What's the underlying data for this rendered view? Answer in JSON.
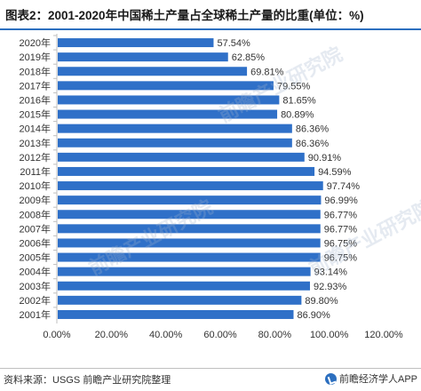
{
  "page": {
    "title": "图表2：2001-2020年中国稀土产量占全球稀土产量的比重(单位：%)",
    "source": "资料来源：USGS 前瞻产业研究院整理",
    "brand": "前瞻经济学人APP",
    "watermark": "前瞻产业研究院"
  },
  "colors": {
    "bar": "#2f70c8",
    "accent": "#2c6fbf",
    "text": "#333333",
    "axis": "#bfbfbf"
  },
  "icons": {
    "brand_logo": "qianzhan-logo-icon"
  },
  "chart_data": {
    "type": "bar",
    "orientation": "horizontal",
    "title": "2001-2020年中国稀土产量占全球稀土产量的比重(单位：%)",
    "categories": [
      "2020年",
      "2019年",
      "2018年",
      "2017年",
      "2016年",
      "2015年",
      "2014年",
      "2013年",
      "2012年",
      "2011年",
      "2010年",
      "2009年",
      "2008年",
      "2007年",
      "2006年",
      "2005年",
      "2004年",
      "2003年",
      "2002年",
      "2001年"
    ],
    "values": [
      57.54,
      62.85,
      69.81,
      79.55,
      81.65,
      80.89,
      86.36,
      86.36,
      90.91,
      94.59,
      97.74,
      96.99,
      96.77,
      96.77,
      96.75,
      96.75,
      93.14,
      92.93,
      89.8,
      86.9
    ],
    "value_labels": [
      "57.54%",
      "62.85%",
      "69.81%",
      "79.55%",
      "81.65%",
      "80.89%",
      "86.36%",
      "86.36%",
      "90.91%",
      "94.59%",
      "97.74%",
      "96.99%",
      "96.77%",
      "96.77%",
      "96.75%",
      "96.75%",
      "93.14%",
      "92.93%",
      "89.80%",
      "86.90%"
    ],
    "xlim": [
      0,
      120
    ],
    "xticks": [
      0,
      20,
      40,
      60,
      80,
      100,
      120
    ],
    "xtick_labels": [
      "0.00%",
      "20.00%",
      "40.00%",
      "60.00%",
      "80.00%",
      "100.00%",
      "120.00%"
    ],
    "xlabel": "",
    "ylabel": "",
    "grid": false,
    "legend": "none"
  }
}
